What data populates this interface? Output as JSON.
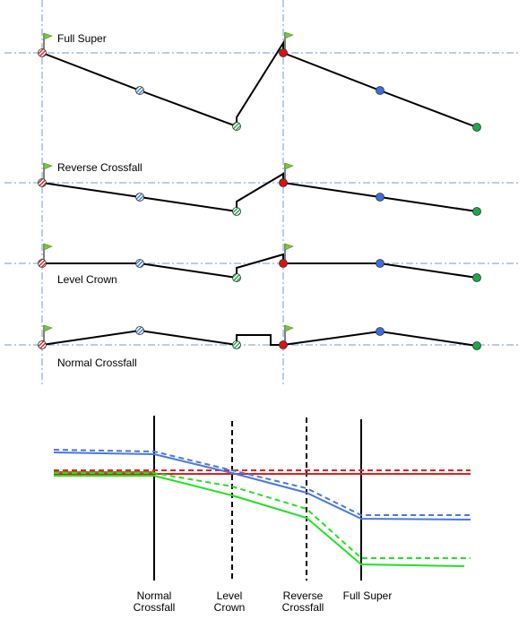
{
  "upper_diagram": {
    "sections": [
      {
        "label": "Full Super"
      },
      {
        "label": "Reverse Crossfall"
      },
      {
        "label": "Level Crown"
      },
      {
        "label": "Normal Crossfall"
      }
    ],
    "colors": {
      "left_edge": "#e03030",
      "crown": "#4a7fe0",
      "right_edge": "#27ae4f",
      "flag": "#7cc63a",
      "guide_line": "#6f9fc8",
      "profile_line": "#000000"
    }
  },
  "lower_diagram": {
    "stations": [
      {
        "line1": "Normal",
        "line2": "Crossfall",
        "style": "solid"
      },
      {
        "line1": "Level",
        "line2": "Crown",
        "style": "dashed"
      },
      {
        "line1": "Reverse",
        "line2": "Crossfall",
        "style": "dashed"
      },
      {
        "line1": "Full Super",
        "line2": "",
        "style": "solid"
      }
    ],
    "colors": {
      "red": "#e02020",
      "blue": "#4a78e0",
      "green": "#22e022",
      "olive": "#8a7a2a"
    }
  }
}
